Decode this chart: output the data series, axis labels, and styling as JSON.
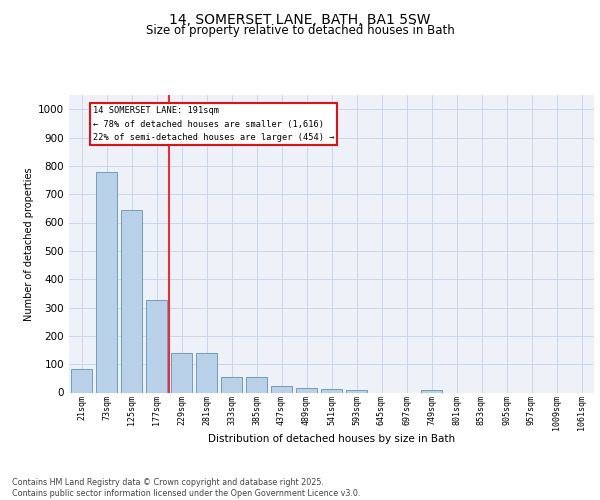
{
  "title_line1": "14, SOMERSET LANE, BATH, BA1 5SW",
  "title_line2": "Size of property relative to detached houses in Bath",
  "xlabel": "Distribution of detached houses by size in Bath",
  "ylabel": "Number of detached properties",
  "categories": [
    "21sqm",
    "73sqm",
    "125sqm",
    "177sqm",
    "229sqm",
    "281sqm",
    "333sqm",
    "385sqm",
    "437sqm",
    "489sqm",
    "541sqm",
    "593sqm",
    "645sqm",
    "697sqm",
    "749sqm",
    "801sqm",
    "853sqm",
    "905sqm",
    "957sqm",
    "1009sqm",
    "1061sqm"
  ],
  "values": [
    82,
    780,
    645,
    328,
    140,
    140,
    55,
    55,
    22,
    17,
    12,
    8,
    0,
    0,
    8,
    0,
    0,
    0,
    0,
    0,
    0
  ],
  "bar_color": "#b8d0e8",
  "bar_edge_color": "#6090c0",
  "grid_color": "#c8d8ec",
  "background_color": "#eef2f8",
  "vline_x": 3.5,
  "vline_color": "red",
  "annotation_line1": "14 SOMERSET LANE: 191sqm",
  "annotation_line2": "← 78% of detached houses are smaller (1,616)",
  "annotation_line3": "22% of semi-detached houses are larger (454) →",
  "footer_text": "Contains HM Land Registry data © Crown copyright and database right 2025.\nContains public sector information licensed under the Open Government Licence v3.0.",
  "ylim": [
    0,
    1050
  ],
  "yticks": [
    0,
    100,
    200,
    300,
    400,
    500,
    600,
    700,
    800,
    900,
    1000
  ],
  "title_fontsize": 10,
  "subtitle_fontsize": 8.5
}
